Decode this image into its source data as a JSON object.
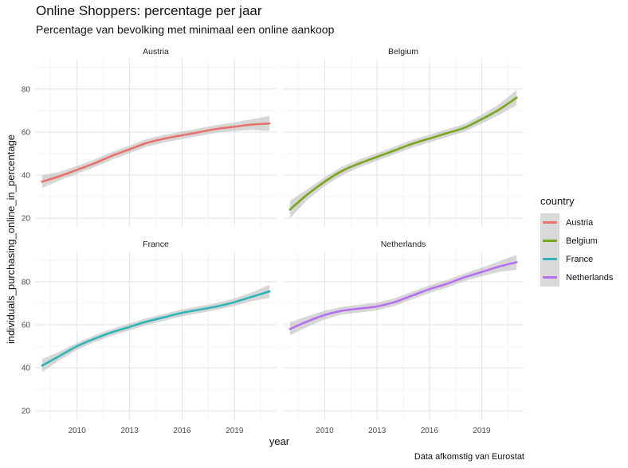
{
  "title": "Online Shoppers: percentage per jaar",
  "subtitle": "Percentage van bevolking met minimaal een online aankoop",
  "caption": "Data afkomstig van Eurostat",
  "legend": {
    "title": "country",
    "items": [
      {
        "label": "Austria",
        "color": "#e8716c"
      },
      {
        "label": "Belgium",
        "color": "#7aa61c"
      },
      {
        "label": "France",
        "color": "#2fb5b9"
      },
      {
        "label": "Netherlands",
        "color": "#b86ef0"
      }
    ]
  },
  "chart_data": {
    "type": "line",
    "title": "Online Shoppers: percentage per jaar",
    "subtitle": "Percentage van bevolking met minimaal een online aankoop",
    "xlabel": "year",
    "ylabel": "individuals_purchasing_online_in_percentage",
    "xlim": [
      2007.6,
      2021.4
    ],
    "ylim": [
      16,
      94
    ],
    "x_ticks": [
      2010,
      2013,
      2016,
      2019
    ],
    "y_ticks": [
      20,
      40,
      60,
      80
    ],
    "smoothed_with_confidence_band": true,
    "grid": true,
    "legend_position": "right",
    "facets": [
      "Austria",
      "Belgium",
      "France",
      "Netherlands"
    ],
    "series": [
      {
        "name": "Austria",
        "color": "#e8716c",
        "x": [
          2008,
          2009,
          2010,
          2011,
          2012,
          2013,
          2014,
          2015,
          2016,
          2017,
          2018,
          2019,
          2020,
          2021
        ],
        "y": [
          37,
          39.5,
          42.5,
          45.5,
          49,
          52,
          55,
          57,
          58.5,
          60,
          61.5,
          62.5,
          63.5,
          64
        ],
        "band": [
          3,
          2,
          1.8,
          1.8,
          1.8,
          1.8,
          1.8,
          1.8,
          1.8,
          1.8,
          1.8,
          2,
          2.5,
          3.5
        ]
      },
      {
        "name": "Belgium",
        "color": "#7aa61c",
        "x": [
          2008,
          2009,
          2010,
          2011,
          2012,
          2013,
          2014,
          2015,
          2016,
          2017,
          2018,
          2019,
          2020,
          2021
        ],
        "y": [
          24,
          31,
          37,
          42,
          45.5,
          48.5,
          51.5,
          54.5,
          57,
          59.5,
          62,
          66,
          70.5,
          76
        ],
        "band": [
          4,
          2.5,
          2,
          2,
          1.8,
          1.8,
          1.8,
          1.8,
          1.8,
          1.8,
          1.8,
          2,
          2.5,
          3.5
        ]
      },
      {
        "name": "France",
        "color": "#2fb5b9",
        "x": [
          2008,
          2009,
          2010,
          2011,
          2012,
          2013,
          2014,
          2015,
          2016,
          2017,
          2018,
          2019,
          2020,
          2021
        ],
        "y": [
          41,
          45.5,
          50,
          53.5,
          56.5,
          59,
          61.5,
          63.5,
          65.5,
          67,
          68.5,
          70.5,
          73,
          75.5
        ],
        "band": [
          3,
          2,
          1.6,
          1.6,
          1.6,
          1.6,
          1.6,
          1.6,
          1.6,
          1.6,
          1.6,
          1.8,
          2,
          3
        ]
      },
      {
        "name": "Netherlands",
        "color": "#b86ef0",
        "x": [
          2008,
          2009,
          2010,
          2011,
          2012,
          2013,
          2014,
          2015,
          2016,
          2017,
          2018,
          2019,
          2020,
          2021
        ],
        "y": [
          58,
          61.5,
          64.5,
          66.5,
          67.5,
          68.5,
          70.5,
          73.5,
          76.5,
          79,
          82,
          84.5,
          87,
          89
        ],
        "band": [
          3,
          2.5,
          2,
          1.8,
          1.8,
          1.8,
          1.8,
          1.8,
          1.8,
          1.8,
          1.8,
          2,
          2.5,
          3.5
        ]
      }
    ]
  }
}
